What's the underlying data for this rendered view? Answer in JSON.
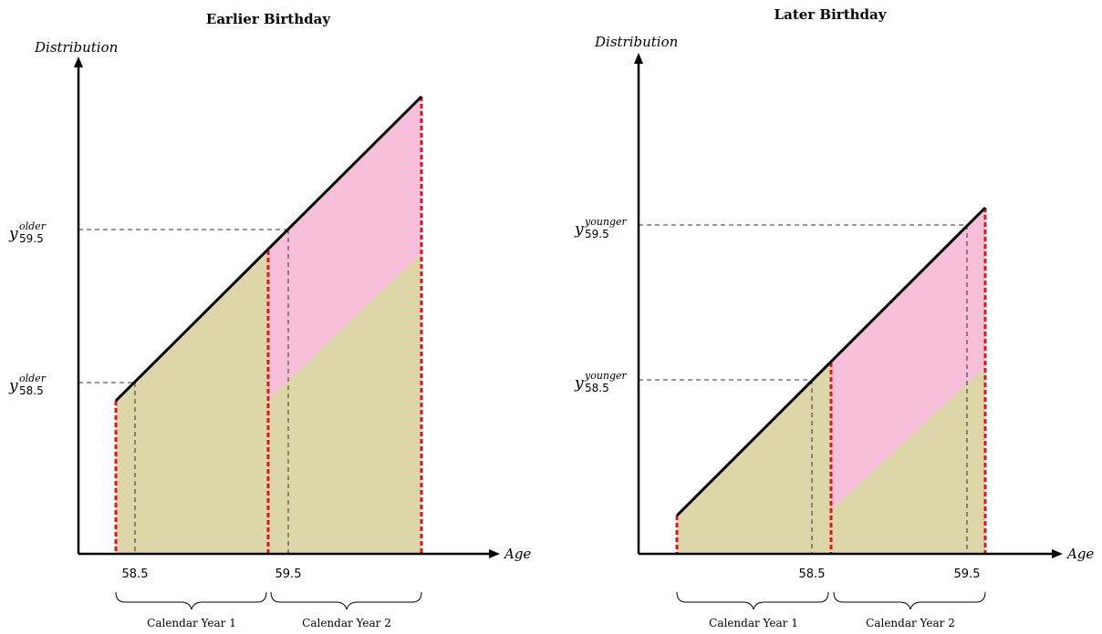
{
  "panels": [
    {
      "title": "Earlier Birthday",
      "y_axis_label": "Distribution",
      "x_axis_label": "Age",
      "x_ticks": [
        "58.5",
        "59.5"
      ],
      "y_labels": [
        {
          "main": "y",
          "sup": "older",
          "sub": "59.5"
        },
        {
          "main": "y",
          "sup": "older",
          "sub": "58.5"
        }
      ],
      "braces": [
        "Calendar Year 1",
        "Calendar Year 2"
      ]
    },
    {
      "title": "Later Birthday",
      "y_axis_label": "Distribution",
      "x_axis_label": "Age",
      "x_ticks": [
        "58.5",
        "59.5"
      ],
      "y_labels": [
        {
          "main": "y",
          "sup": "younger",
          "sub": "59.5"
        },
        {
          "main": "y",
          "sup": "younger",
          "sub": "58.5"
        }
      ],
      "braces": [
        "Calendar Year 1",
        "Calendar Year 2"
      ]
    }
  ],
  "colors": {
    "olive_fill": "#ddd6a8",
    "pink_fill": "#f7bfd9",
    "red_dash": "#e0141e"
  }
}
